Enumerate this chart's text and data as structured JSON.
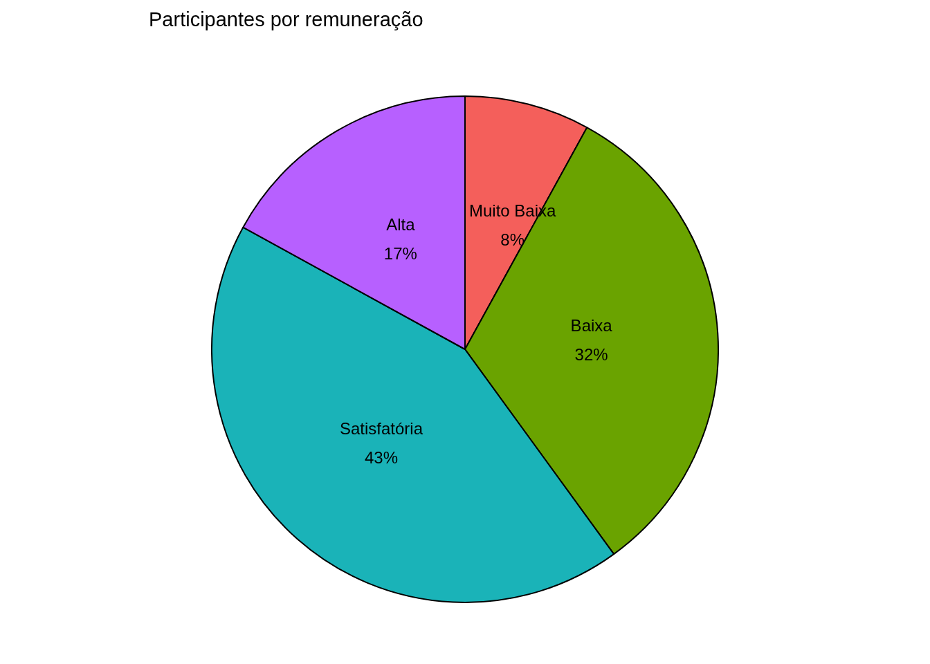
{
  "chart_data": {
    "type": "pie",
    "title": "Participantes por remuneração",
    "categories": [
      "Muito Baixa",
      "Baixa",
      "Satisfatória",
      "Alta"
    ],
    "values": [
      8,
      32,
      43,
      17
    ],
    "colors": [
      "#f45f5b",
      "#6aa300",
      "#1ab3b8",
      "#b760ff"
    ],
    "value_labels": [
      "8%",
      "32%",
      "43%",
      "17%"
    ],
    "legend": false
  }
}
